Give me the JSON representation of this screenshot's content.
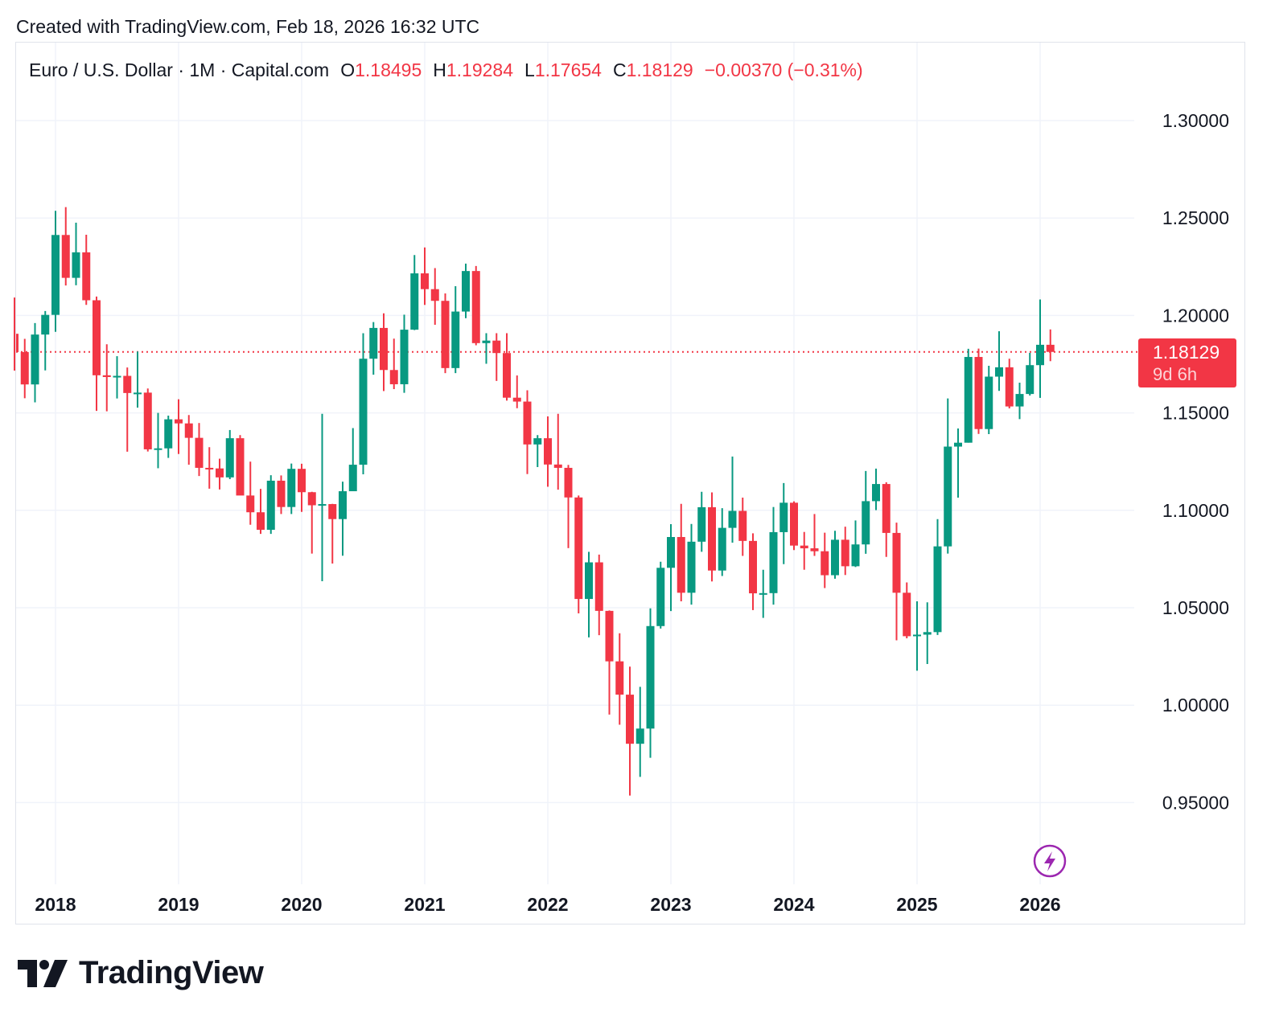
{
  "header": {
    "created": "Created with TradingView.com, Feb 18, 2026 16:32 UTC"
  },
  "legend": {
    "symbol": "Euro / U.S. Dollar · 1M · Capital.com",
    "o_label": "O",
    "o": "1.18495",
    "h_label": "H",
    "h": "1.19284",
    "l_label": "L",
    "l": "1.17654",
    "c_label": "C",
    "c": "1.18129",
    "change": "−0.00370 (−0.31%)"
  },
  "price_tag": {
    "price": "1.18129",
    "countdown": "9d 6h"
  },
  "logo": {
    "text": "TradingView"
  },
  "colors": {
    "up": "#089981",
    "down": "#f23645",
    "grid": "#f0f3fa"
  },
  "chart_data": {
    "type": "candlestick",
    "title": "Euro / U.S. Dollar · 1M · Capital.com",
    "interval": "1M",
    "start_month": "2017-09",
    "ylim": [
      0.915,
      1.34
    ],
    "yticks": [
      "1.30000",
      "1.25000",
      "1.20000",
      "1.15000",
      "1.10000",
      "1.05000",
      "1.00000",
      "0.95000"
    ],
    "ytick_values": [
      1.3,
      1.25,
      1.2,
      1.15,
      1.1,
      1.05,
      1.0,
      0.95
    ],
    "xticks": [
      "2018",
      "2019",
      "2020",
      "2021",
      "2022",
      "2023",
      "2024",
      "2025",
      "2026"
    ],
    "xtick_month_index": [
      4,
      16,
      28,
      40,
      52,
      64,
      76,
      88,
      100
    ],
    "last_price": 1.18129,
    "ohlc": [
      [
        1.1906,
        1.2092,
        1.1717,
        1.1812
      ],
      [
        1.1812,
        1.188,
        1.1575,
        1.1646
      ],
      [
        1.1646,
        1.1961,
        1.1554,
        1.1902
      ],
      [
        1.1902,
        1.2023,
        1.1718,
        1.2003
      ],
      [
        1.2003,
        1.2537,
        1.1916,
        1.2413
      ],
      [
        1.2413,
        1.2556,
        1.2154,
        1.2193
      ],
      [
        1.2193,
        1.2476,
        1.2155,
        1.2324
      ],
      [
        1.2324,
        1.2414,
        1.2054,
        1.2078
      ],
      [
        1.2078,
        1.2097,
        1.151,
        1.1693
      ],
      [
        1.1693,
        1.1852,
        1.1508,
        1.1684
      ],
      [
        1.1684,
        1.1791,
        1.1574,
        1.169
      ],
      [
        1.169,
        1.1733,
        1.1301,
        1.1602
      ],
      [
        1.1602,
        1.1815,
        1.1527,
        1.1604
      ],
      [
        1.1604,
        1.1625,
        1.1302,
        1.1313
      ],
      [
        1.1313,
        1.15,
        1.1216,
        1.1318
      ],
      [
        1.1318,
        1.1486,
        1.1269,
        1.1467
      ],
      [
        1.1467,
        1.157,
        1.1289,
        1.1446
      ],
      [
        1.1446,
        1.1489,
        1.1234,
        1.1372
      ],
      [
        1.1372,
        1.1448,
        1.1176,
        1.1218
      ],
      [
        1.1218,
        1.1324,
        1.1111,
        1.1215
      ],
      [
        1.1215,
        1.1265,
        1.1107,
        1.1169
      ],
      [
        1.1169,
        1.1412,
        1.116,
        1.137
      ],
      [
        1.137,
        1.1386,
        1.1101,
        1.1076
      ],
      [
        1.1076,
        1.125,
        1.0926,
        1.099
      ],
      [
        1.099,
        1.111,
        1.0879,
        1.09
      ],
      [
        1.09,
        1.118,
        1.0879,
        1.1152
      ],
      [
        1.1152,
        1.1179,
        1.0981,
        1.1017
      ],
      [
        1.1017,
        1.124,
        1.0981,
        1.1213
      ],
      [
        1.1213,
        1.1239,
        1.0992,
        1.1093
      ],
      [
        1.1093,
        1.1095,
        1.0778,
        1.1026
      ],
      [
        1.1026,
        1.1495,
        1.0636,
        1.1032
      ],
      [
        1.1032,
        1.1033,
        1.0727,
        1.0955
      ],
      [
        1.0955,
        1.1147,
        1.0767,
        1.1098
      ],
      [
        1.1098,
        1.1422,
        1.1098,
        1.1234
      ],
      [
        1.1234,
        1.1909,
        1.1185,
        1.1778
      ],
      [
        1.1778,
        1.1966,
        1.1696,
        1.1936
      ],
      [
        1.1936,
        1.2011,
        1.1612,
        1.172
      ],
      [
        1.172,
        1.1881,
        1.1622,
        1.1647
      ],
      [
        1.1647,
        1.2004,
        1.1603,
        1.1927
      ],
      [
        1.1927,
        1.231,
        1.1925,
        1.2216
      ],
      [
        1.2216,
        1.2349,
        1.2054,
        1.2135
      ],
      [
        1.2135,
        1.2243,
        1.1952,
        1.2075
      ],
      [
        1.2075,
        1.2113,
        1.1704,
        1.173
      ],
      [
        1.173,
        1.215,
        1.1704,
        1.202
      ],
      [
        1.202,
        1.2266,
        1.1986,
        1.2228
      ],
      [
        1.2228,
        1.2254,
        1.1847,
        1.1858
      ],
      [
        1.1858,
        1.1909,
        1.1752,
        1.1871
      ],
      [
        1.1871,
        1.1909,
        1.1664,
        1.1807
      ],
      [
        1.1807,
        1.1909,
        1.1563,
        1.1578
      ],
      [
        1.1578,
        1.1692,
        1.1524,
        1.1558
      ],
      [
        1.1558,
        1.1616,
        1.1186,
        1.1338
      ],
      [
        1.1338,
        1.1386,
        1.1222,
        1.137
      ],
      [
        1.137,
        1.1482,
        1.1121,
        1.1235
      ],
      [
        1.1235,
        1.1495,
        1.1106,
        1.1218
      ],
      [
        1.1218,
        1.1233,
        1.0806,
        1.1066
      ],
      [
        1.1066,
        1.1076,
        1.0471,
        1.0545
      ],
      [
        1.0545,
        1.0787,
        1.0348,
        1.0733
      ],
      [
        1.0733,
        1.0773,
        1.0359,
        1.0484
      ],
      [
        1.0484,
        1.0486,
        0.9952,
        1.0225
      ],
      [
        1.0225,
        1.0369,
        0.99,
        1.0054
      ],
      [
        1.0054,
        1.0198,
        0.9536,
        0.9802
      ],
      [
        0.9802,
        1.0094,
        0.9632,
        0.988
      ],
      [
        0.988,
        1.0497,
        0.973,
        1.0406
      ],
      [
        1.0406,
        1.0736,
        1.0393,
        1.0705
      ],
      [
        1.0705,
        1.0929,
        1.0483,
        1.0863
      ],
      [
        1.0863,
        1.1033,
        1.0533,
        1.0577
      ],
      [
        1.0577,
        1.093,
        1.0516,
        1.0839
      ],
      [
        1.0839,
        1.1095,
        1.0787,
        1.1016
      ],
      [
        1.1016,
        1.1092,
        1.0635,
        1.0691
      ],
      [
        1.0691,
        1.1011,
        1.0663,
        1.091
      ],
      [
        1.091,
        1.1276,
        1.0834,
        1.0997
      ],
      [
        1.0997,
        1.1065,
        1.0766,
        1.0843
      ],
      [
        1.0843,
        1.0882,
        1.0488,
        1.0574
      ],
      [
        1.0574,
        1.0695,
        1.0448,
        1.0575
      ],
      [
        1.0575,
        1.1017,
        1.0516,
        1.0888
      ],
      [
        1.0888,
        1.114,
        1.0724,
        1.1039
      ],
      [
        1.1039,
        1.1046,
        1.0796,
        1.0819
      ],
      [
        1.0819,
        1.0889,
        1.0695,
        1.0805
      ],
      [
        1.0805,
        1.0981,
        1.0766,
        1.079
      ],
      [
        1.079,
        1.0885,
        1.0601,
        1.0667
      ],
      [
        1.0667,
        1.0895,
        1.0649,
        1.0849
      ],
      [
        1.0849,
        1.0916,
        1.0668,
        1.0713
      ],
      [
        1.0713,
        1.0948,
        1.0709,
        1.0825
      ],
      [
        1.0825,
        1.1202,
        1.0777,
        1.1047
      ],
      [
        1.1047,
        1.1214,
        1.1001,
        1.1135
      ],
      [
        1.1135,
        1.1144,
        1.0761,
        1.0884
      ],
      [
        1.0884,
        1.0937,
        1.0333,
        1.0577
      ],
      [
        1.0577,
        1.063,
        1.0343,
        1.0354
      ],
      [
        1.0354,
        1.0533,
        1.0177,
        1.0362
      ],
      [
        1.0362,
        1.0528,
        1.0211,
        1.0375
      ],
      [
        1.0375,
        1.0955,
        1.036,
        1.0815
      ],
      [
        1.0815,
        1.1574,
        1.0778,
        1.1327
      ],
      [
        1.1327,
        1.142,
        1.1065,
        1.1347
      ],
      [
        1.1347,
        1.1829,
        1.1347,
        1.1787
      ],
      [
        1.1787,
        1.183,
        1.1392,
        1.1417
      ],
      [
        1.1417,
        1.1742,
        1.1391,
        1.1686
      ],
      [
        1.1686,
        1.1919,
        1.1613,
        1.1734
      ],
      [
        1.1734,
        1.1778,
        1.1523,
        1.1533
      ],
      [
        1.1533,
        1.1655,
        1.1468,
        1.1597
      ],
      [
        1.1597,
        1.1808,
        1.1589,
        1.1745
      ],
      [
        1.1745,
        1.2082,
        1.1577,
        1.18495
      ],
      [
        1.18495,
        1.19284,
        1.17654,
        1.18129
      ]
    ]
  }
}
